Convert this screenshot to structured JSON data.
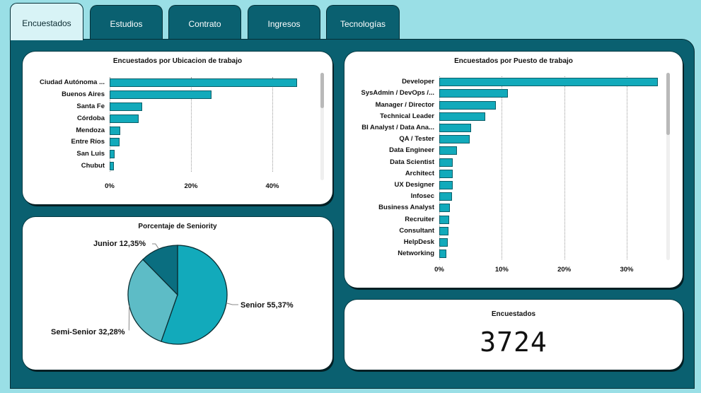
{
  "tabs": [
    "Encuestados",
    "Estudios",
    "Contrato",
    "Ingresos",
    "Tecnologías"
  ],
  "active_tab": "Encuestados",
  "colors": {
    "bar": "#12aabb",
    "panel": "#0a6070",
    "background": "#9adfe6",
    "pie_senior": "#12aabb",
    "pie_semi": "#5dbcc6",
    "pie_junior": "#0a6e80"
  },
  "ubicacion_chart": {
    "title": "Encuestados por Ubicacion de trabajo",
    "chart_data": {
      "type": "bar",
      "orientation": "horizontal",
      "categories": [
        "Ciudad Autónoma ...",
        "Buenos Aires",
        "Santa Fe",
        "Córdoba",
        "Mendoza",
        "Entre Ríos",
        "San Luis",
        "Chubut"
      ],
      "values": [
        46,
        25,
        8,
        7.2,
        2.6,
        2.4,
        1.3,
        1.0
      ],
      "xlim": [
        0,
        50
      ],
      "tick_labels": [
        "0%",
        "20%",
        "40%"
      ],
      "grid": true
    }
  },
  "puesto_chart": {
    "title": "Encuestados por Puesto de trabajo",
    "chart_data": {
      "type": "bar",
      "orientation": "horizontal",
      "categories": [
        "Developer",
        "SysAdmin / DevOps /...",
        "Manager / Director",
        "Technical Leader",
        "BI Analyst / Data Ana...",
        "QA / Tester",
        "Data Engineer",
        "Data Scientist",
        "Architect",
        "UX Designer",
        "Infosec",
        "Business Analyst",
        "Recruiter",
        "Consultant",
        "HelpDesk",
        "Networking"
      ],
      "values": [
        35,
        11,
        9.1,
        7.4,
        5.1,
        4.9,
        2.8,
        2.2,
        2.2,
        2.1,
        2.0,
        1.7,
        1.6,
        1.5,
        1.4,
        1.1
      ],
      "xlim": [
        0,
        36
      ],
      "tick_labels": [
        "0%",
        "10%",
        "20%",
        "30%"
      ],
      "grid": true
    }
  },
  "seniority_chart": {
    "title": "Porcentaje de Seniority",
    "chart_data": {
      "type": "pie",
      "slices": [
        {
          "label": "Senior 55,37%",
          "value": 55.37,
          "color": "#12aabb"
        },
        {
          "label": "Semi-Senior 32,28%",
          "value": 32.28,
          "color": "#5dbcc6"
        },
        {
          "label": "Junior 12,35%",
          "value": 12.35,
          "color": "#0a6e80"
        }
      ]
    }
  },
  "kpi": {
    "title": "Encuestados",
    "value": "3724"
  }
}
